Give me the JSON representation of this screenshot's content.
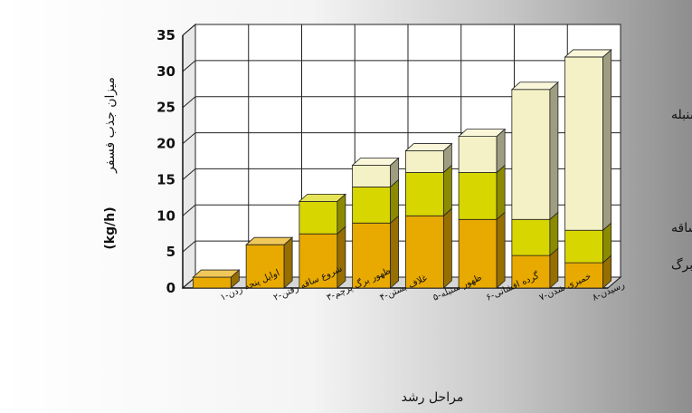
{
  "chart_data": {
    "type": "bar",
    "stacked": true,
    "style": "3d",
    "categories": [
      "اوایل پنجه زدن-۱",
      "شروع ساقه رفتن-۲",
      "ظهور برگ پرچم-۳",
      "غلاف بستن-۴",
      "ظهور سنبله-۵",
      "گرده افشانی-۶",
      "خمیری شدن-۷",
      "رسیدن-۸"
    ],
    "series": [
      {
        "name": "برگ",
        "color": "#e8a900",
        "values": [
          1.5,
          6.0,
          7.5,
          9.0,
          10.0,
          9.5,
          4.5,
          3.5
        ]
      },
      {
        "name": "ساقه",
        "color": "#d8d600",
        "values": [
          0,
          0,
          4.5,
          5.0,
          6.0,
          6.5,
          5.0,
          4.5
        ]
      },
      {
        "name": "سنبله",
        "color": "#f5f1c6",
        "values": [
          0,
          0,
          0,
          3.0,
          3.0,
          5.0,
          18.0,
          24.0
        ]
      }
    ],
    "ylim": [
      0,
      35
    ],
    "yticks": [
      0,
      5,
      10,
      15,
      20,
      25,
      30,
      35
    ],
    "xlabel": "مراحل رشد",
    "ylabel": "میزان جذب فسفر",
    "yunit": "(kg/h)",
    "grid": true,
    "legend_position": "right"
  }
}
